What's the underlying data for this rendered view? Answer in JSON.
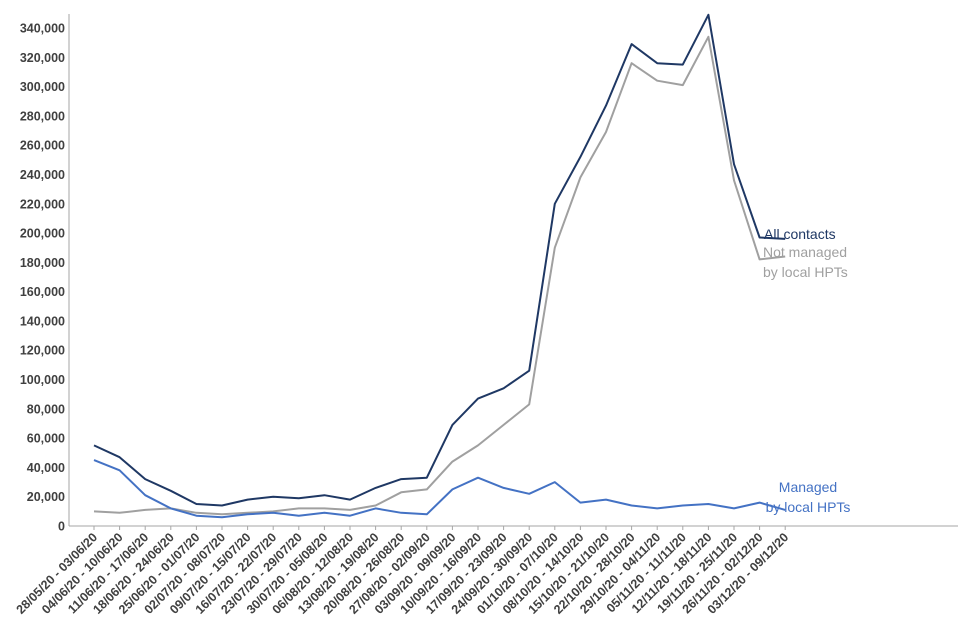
{
  "chart_data": {
    "type": "line",
    "title": "",
    "xlabel": "",
    "ylabel": "",
    "ylim": [
      0,
      340000
    ],
    "ytick_step": 20000,
    "grid": false,
    "categories": [
      "28/05/20 - 03/06/20",
      "04/06/20 - 10/06/20",
      "11/06/20 - 17/06/20",
      "18/06/20 - 24/06/20",
      "25/06/20 - 01/07/20",
      "02/07/20 - 08/07/20",
      "09/07/20 - 15/07/20",
      "16/07/20 - 22/07/20",
      "23/07/20 - 29/07/20",
      "30/07/20 - 05/08/20",
      "06/08/20 - 12/08/20",
      "13/08/20 - 19/08/20",
      "20/08/20 - 26/08/20",
      "27/08/20 - 02/09/20",
      "03/09/20 - 09/09/20",
      "10/09/20 - 16/09/20",
      "17/09/20 - 23/09/20",
      "24/09/20 - 30/09/20",
      "01/10/20 - 07/10/20",
      "08/10/20 - 14/10/20",
      "15/10/20 - 21/10/20",
      "22/10/20 - 28/10/20",
      "29/10/20 - 04/11/20",
      "05/11/20 - 11/11/20",
      "12/11/20 - 18/11/20",
      "19/11/20 - 25/11/20",
      "26/11/20 - 02/12/20",
      "03/12/20 - 09/12/20"
    ],
    "series": [
      {
        "name": "All contacts",
        "label_lines": [
          "All contacts"
        ],
        "color": "#1f3864",
        "values": [
          55000,
          47000,
          32000,
          24000,
          15000,
          14000,
          18000,
          20000,
          19000,
          21000,
          18000,
          26000,
          32000,
          33000,
          69000,
          87000,
          94000,
          106000,
          220000,
          252000,
          287000,
          329000,
          316000,
          315000,
          349000,
          247000,
          197000,
          196000
        ]
      },
      {
        "name": "Not managed by local HPTs",
        "label_lines": [
          "Not managed",
          "by local HPTs"
        ],
        "color": "#a0a0a0",
        "values": [
          10000,
          9000,
          11000,
          12000,
          9000,
          8000,
          9000,
          10000,
          12000,
          12000,
          11000,
          14000,
          23000,
          25000,
          44000,
          55000,
          69000,
          83000,
          190000,
          238000,
          269000,
          316000,
          304000,
          301000,
          334000,
          236000,
          182000,
          184000
        ]
      },
      {
        "name": "Managed by local HPTs",
        "label_lines": [
          "Managed",
          "by local HPTs"
        ],
        "color": "#4472c4",
        "values": [
          45000,
          38000,
          21000,
          12000,
          7000,
          6000,
          8000,
          9000,
          7000,
          9000,
          7000,
          12000,
          9000,
          8000,
          25000,
          33000,
          26000,
          22000,
          30000,
          16000,
          18000,
          14000,
          12000,
          14000,
          15000,
          12000,
          16000,
          11000
        ]
      }
    ]
  }
}
